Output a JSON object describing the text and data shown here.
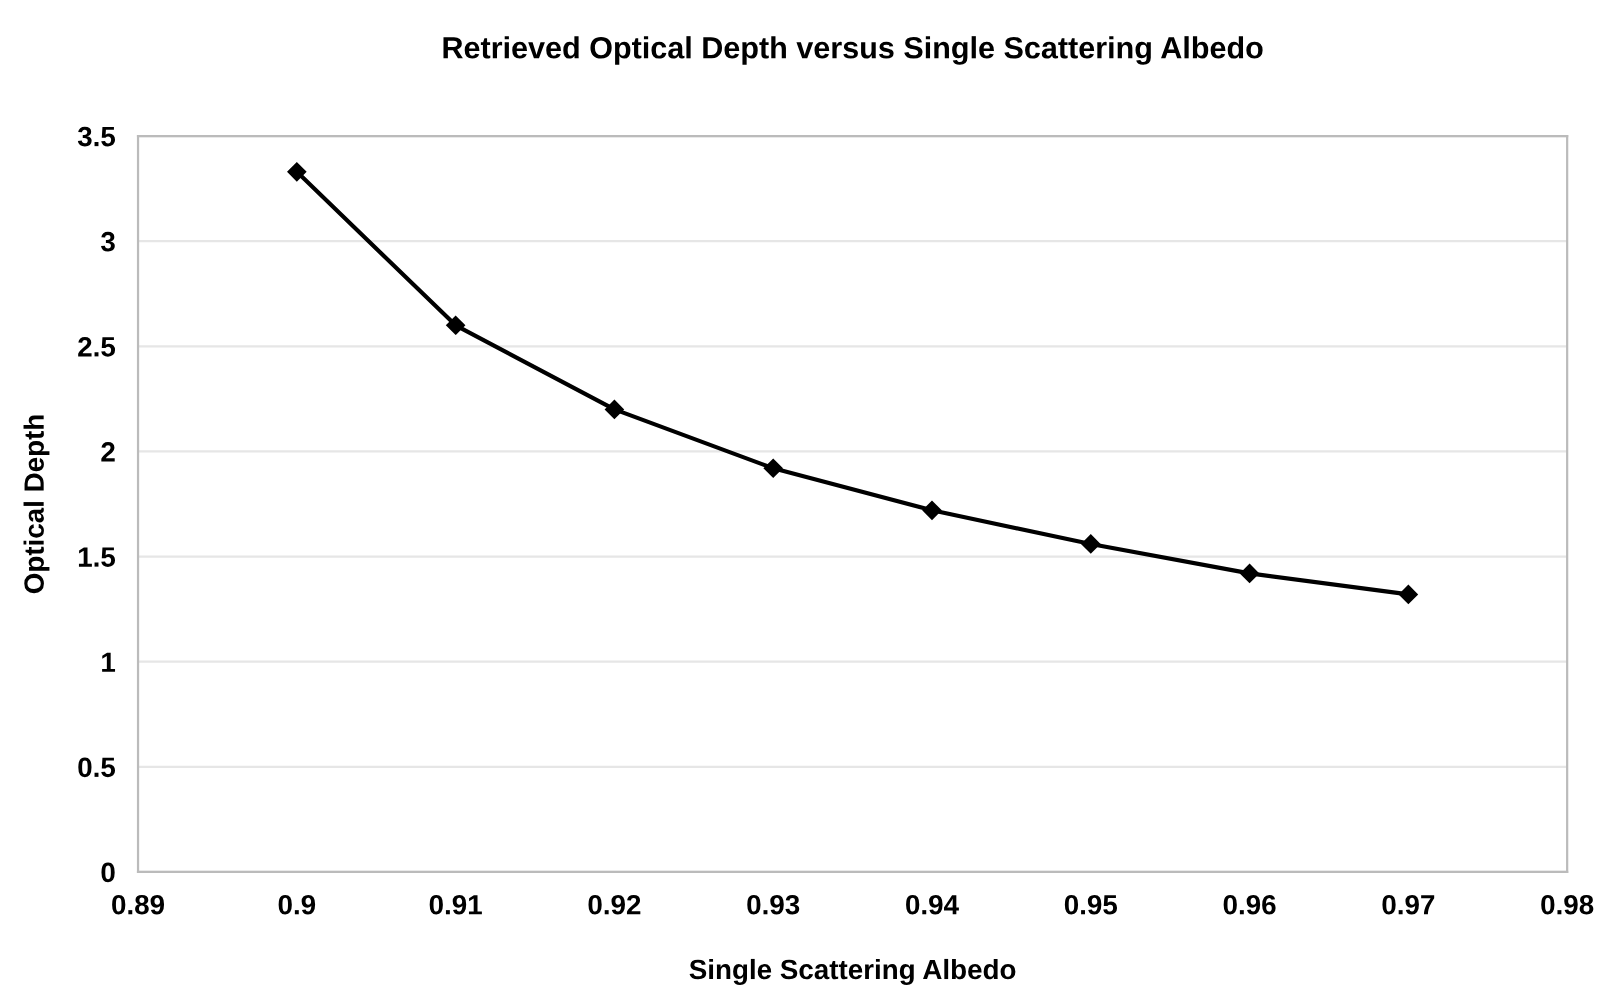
{
  "chart_data": {
    "type": "line",
    "title": "Retrieved Optical Depth versus Single Scattering Albedo",
    "xlabel": "Single Scattering Albedo",
    "ylabel": "Optical Depth",
    "x": [
      0.9,
      0.91,
      0.92,
      0.93,
      0.94,
      0.95,
      0.96,
      0.97
    ],
    "series": [
      {
        "color": "#000000",
        "values": [
          3.33,
          2.6,
          2.2,
          1.92,
          1.72,
          1.56,
          1.42,
          1.32
        ]
      }
    ],
    "xlim": [
      0.89,
      0.98
    ],
    "xticks": [
      0.89,
      0.9,
      0.91,
      0.92,
      0.93,
      0.94,
      0.95,
      0.96,
      0.97,
      0.98
    ],
    "ylim": [
      0,
      3.5
    ],
    "yticks": [
      0,
      0.5,
      1,
      1.5,
      2,
      2.5,
      3,
      3.5
    ],
    "grid": "y",
    "marker": "diamond",
    "line_style": "solid"
  }
}
